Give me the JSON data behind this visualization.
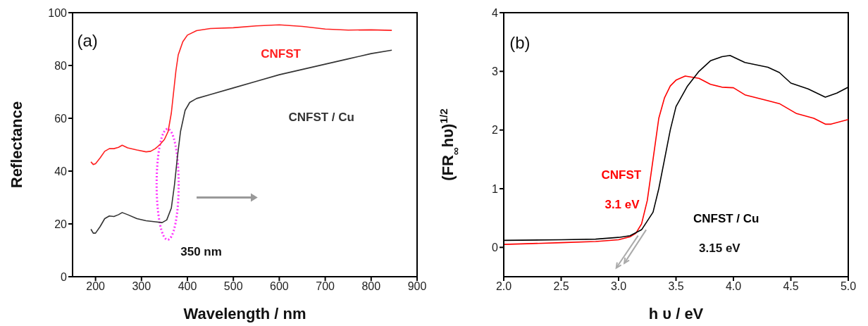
{
  "chart_data": [
    {
      "type": "line",
      "xlabel": "Wavelength / nm",
      "ylabel": "Reflectance",
      "xlim": [
        150,
        900
      ],
      "ylim": [
        0,
        100
      ],
      "xticks": [
        200,
        300,
        400,
        500,
        600,
        700,
        800,
        900
      ],
      "yticks": [
        0,
        20,
        40,
        60,
        80,
        100
      ],
      "grid": false,
      "marker": "none",
      "annotations": [
        "(a)",
        "350 nm"
      ],
      "series": [
        {
          "name": "CNFST",
          "color": "#ff2020",
          "x": [
            190,
            195,
            200,
            210,
            220,
            230,
            240,
            250,
            258,
            270,
            290,
            310,
            320,
            330,
            340,
            350,
            358,
            365,
            370,
            375,
            380,
            390,
            400,
            420,
            450,
            500,
            550,
            600,
            650,
            700,
            750,
            800,
            845
          ],
          "values": [
            43.5,
            42.5,
            42.8,
            45,
            47.5,
            48.5,
            48.5,
            49,
            49.8,
            48.8,
            48,
            47.3,
            47.5,
            48.5,
            50,
            52,
            55,
            62,
            70,
            78,
            84,
            89,
            91.5,
            93.2,
            94,
            94.3,
            95,
            95.4,
            94.8,
            93.8,
            93.4,
            93.5,
            93.3
          ]
        },
        {
          "name": "CNFST / Cu",
          "color": "#333333",
          "x": [
            190,
            195,
            200,
            210,
            220,
            230,
            240,
            250,
            258,
            270,
            290,
            310,
            330,
            345,
            355,
            365,
            372,
            378,
            385,
            395,
            405,
            420,
            450,
            500,
            550,
            600,
            650,
            700,
            750,
            800,
            845
          ],
          "values": [
            18,
            16.5,
            16.5,
            19,
            22,
            23,
            22.8,
            23.5,
            24.3,
            23.5,
            22,
            21.2,
            20.8,
            20.5,
            21.5,
            26,
            35,
            45,
            55,
            63,
            66,
            67.5,
            69,
            71.5,
            74,
            76.5,
            78.5,
            80.5,
            82.5,
            84.5,
            85.8
          ]
        }
      ]
    },
    {
      "type": "line",
      "xlabel": "h υ / eV",
      "ylabel": "(FR$_{∞}$hυ)$^{1/2}$",
      "xlim": [
        2,
        5
      ],
      "ylim": [
        -0.5,
        4
      ],
      "xticks": [
        {
          "value": 2,
          "label": "2.0"
        },
        2.5,
        {
          "value": 3,
          "label": "3.0"
        },
        3.5,
        {
          "value": 4,
          "label": "4.0"
        },
        4.5,
        {
          "value": 5,
          "label": "5.0"
        }
      ],
      "yticks": [
        0,
        1,
        2,
        3,
        4
      ],
      "grid": false,
      "marker": "none",
      "annotations": [
        "(b)",
        "3.1 eV",
        "3.15 eV"
      ],
      "series": [
        {
          "name": "CNFST",
          "color": "#ff0000",
          "x": [
            2.0,
            2.5,
            2.8,
            3.0,
            3.1,
            3.15,
            3.2,
            3.25,
            3.3,
            3.35,
            3.4,
            3.45,
            3.5,
            3.58,
            3.7,
            3.8,
            3.9,
            4.0,
            4.1,
            4.3,
            4.4,
            4.55,
            4.7,
            4.8,
            4.85,
            5.0
          ],
          "values": [
            0.05,
            0.08,
            0.1,
            0.13,
            0.18,
            0.24,
            0.4,
            0.8,
            1.5,
            2.2,
            2.55,
            2.75,
            2.85,
            2.92,
            2.88,
            2.78,
            2.73,
            2.72,
            2.6,
            2.5,
            2.45,
            2.28,
            2.2,
            2.1,
            2.1,
            2.18
          ]
        },
        {
          "name": "CNFST / Cu",
          "color": "#000000",
          "x": [
            2.0,
            2.5,
            2.8,
            3.0,
            3.1,
            3.2,
            3.3,
            3.35,
            3.4,
            3.45,
            3.5,
            3.6,
            3.7,
            3.8,
            3.9,
            3.97,
            4.1,
            4.3,
            4.4,
            4.5,
            4.65,
            4.8,
            4.9,
            5.0
          ],
          "values": [
            0.12,
            0.13,
            0.14,
            0.17,
            0.2,
            0.3,
            0.6,
            1.0,
            1.5,
            2.0,
            2.4,
            2.75,
            3.0,
            3.18,
            3.25,
            3.27,
            3.15,
            3.07,
            2.98,
            2.8,
            2.7,
            2.56,
            2.63,
            2.73
          ]
        }
      ]
    }
  ]
}
